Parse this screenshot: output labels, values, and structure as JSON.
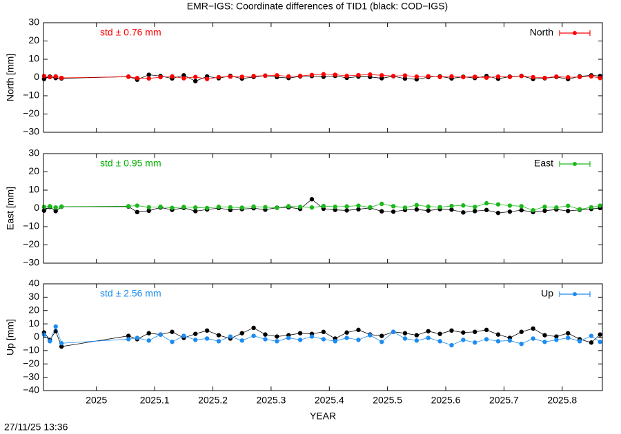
{
  "title": "EMR−IGS: Coordinate differences of TID1 (black: COD−IGS)",
  "timestamp": "27/11/25 13:36",
  "chart_data": [
    {
      "type": "line",
      "y_label": "North [mm]",
      "annotation": "std ± 0.76 mm",
      "annotation_color": "#ff0000",
      "legend": "top-right",
      "xlim": [
        2024.909,
        2025.869
      ],
      "ylim": [
        -30,
        30
      ],
      "yticks": [
        {
          "value": -30,
          "label": "−30"
        },
        {
          "value": -20,
          "label": "−20"
        },
        {
          "value": -10,
          "label": "−10"
        },
        0,
        10,
        20,
        30
      ],
      "x": [
        2024.91,
        2024.92,
        2024.93,
        2024.94,
        2025.055,
        2025.07,
        2025.09,
        2025.11,
        2025.13,
        2025.15,
        2025.17,
        2025.19,
        2025.21,
        2025.23,
        2025.25,
        2025.27,
        2025.29,
        2025.31,
        2025.33,
        2025.35,
        2025.37,
        2025.39,
        2025.41,
        2025.43,
        2025.45,
        2025.47,
        2025.49,
        2025.51,
        2025.53,
        2025.55,
        2025.57,
        2025.59,
        2025.61,
        2025.63,
        2025.65,
        2025.67,
        2025.69,
        2025.71,
        2025.73,
        2025.75,
        2025.77,
        2025.79,
        2025.81,
        2025.83,
        2025.85,
        2025.865
      ],
      "series": [
        {
          "color": "#000000",
          "values": [
            -0.8,
            0.5,
            -0.3,
            -0.5,
            0.5,
            -1.2,
            1.5,
            0.8,
            -0.5,
            1.2,
            -2.0,
            0.6,
            -0.4,
            0.9,
            -0.6,
            0.3,
            1.0,
            0.2,
            -0.3,
            0.6,
            0.8,
            0.4,
            0.9,
            -0.2,
            0.5,
            0.3,
            -0.4,
            0.7,
            -0.6,
            -1.0,
            0.2,
            0.6,
            -0.5,
            0.4,
            -0.3,
            0.8,
            -0.7,
            0.5,
            0.9,
            -0.8,
            -0.4,
            0.3,
            -0.9,
            0.6,
            1.2,
            0.8
          ]
        },
        {
          "name": "North",
          "color": "#ff0000",
          "values": [
            0.8,
            0.2,
            0.6,
            -0.2,
            0.4,
            -0.3,
            -0.5,
            0.2,
            0.6,
            -0.4,
            0.3,
            -0.8,
            0.2,
            0.5,
            0.4,
            0.8,
            1.0,
            1.2,
            0.6,
            0.9,
            1.4,
            1.8,
            1.5,
            0.9,
            1.3,
            1.6,
            1.2,
            0.8,
            1.1,
            0.5,
            0.7,
            0.3,
            0.6,
            0.2,
            0.4,
            -0.1,
            0.5,
            0.3,
            0.8,
            0.2,
            -0.2,
            0.5,
            0.1,
            0.3,
            0.6,
            -0.3
          ]
        }
      ]
    },
    {
      "type": "line",
      "y_label": "East [mm]",
      "annotation": "std ± 0.95 mm",
      "annotation_color": "#00b000",
      "legend": "top-right",
      "xlim": [
        2024.909,
        2025.869
      ],
      "ylim": [
        -30,
        30
      ],
      "yticks": [
        {
          "value": -30,
          "label": "−30"
        },
        {
          "value": -20,
          "label": "−20"
        },
        {
          "value": -10,
          "label": "−10"
        },
        0,
        10,
        20,
        30
      ],
      "x": [
        2024.91,
        2024.92,
        2024.93,
        2024.94,
        2025.055,
        2025.07,
        2025.09,
        2025.11,
        2025.13,
        2025.15,
        2025.17,
        2025.19,
        2025.21,
        2025.23,
        2025.25,
        2025.27,
        2025.29,
        2025.31,
        2025.33,
        2025.35,
        2025.37,
        2025.39,
        2025.41,
        2025.43,
        2025.45,
        2025.47,
        2025.49,
        2025.51,
        2025.53,
        2025.55,
        2025.57,
        2025.59,
        2025.61,
        2025.63,
        2025.65,
        2025.67,
        2025.69,
        2025.71,
        2025.73,
        2025.75,
        2025.77,
        2025.79,
        2025.81,
        2025.83,
        2025.85,
        2025.865
      ],
      "series": [
        {
          "color": "#000000",
          "values": [
            -1.2,
            0.8,
            -1.5,
            0.9,
            1.0,
            -2.0,
            -1.3,
            0.5,
            -0.8,
            0.3,
            -1.5,
            -0.6,
            0.2,
            -0.9,
            -0.4,
            0.1,
            -0.7,
            0.4,
            0.6,
            -0.3,
            5.0,
            -0.2,
            -0.8,
            -1.1,
            -0.5,
            0.3,
            -1.6,
            -1.8,
            -0.9,
            -0.6,
            -1.2,
            -0.4,
            -0.7,
            -2.2,
            -1.5,
            -0.9,
            -2.5,
            -1.8,
            -1.0,
            -2.0,
            -1.3,
            -0.6,
            -1.4,
            -0.8,
            -0.3,
            0.2
          ]
        },
        {
          "name": "East",
          "color": "#1cb81c",
          "values": [
            0.8,
            1.2,
            0.5,
            1.0,
            1.2,
            1.5,
            0.6,
            0.9,
            0.3,
            0.8,
            0.5,
            0.2,
            0.9,
            0.6,
            0.4,
            1.0,
            0.7,
            0.3,
            1.2,
            0.8,
            0.5,
            1.3,
            0.9,
            1.1,
            1.5,
            0.6,
            2.5,
            1.2,
            0.4,
            1.8,
            1.0,
            0.7,
            1.3,
            1.6,
            0.8,
            2.8,
            2.2,
            1.5,
            1.2,
            -1.0,
            0.9,
            0.5,
            1.4,
            -0.5,
            0.6,
            1.5
          ]
        }
      ]
    },
    {
      "type": "line",
      "y_label": "Up [mm]",
      "annotation": "std ± 2.56 mm",
      "annotation_color": "#1e8cf0",
      "legend": "top-right",
      "x_label": "YEAR",
      "xlim": [
        2024.909,
        2025.869
      ],
      "ylim": [
        -40,
        40
      ],
      "yticks": [
        {
          "value": -40,
          "label": "−40"
        },
        {
          "value": -30,
          "label": "−30"
        },
        {
          "value": -20,
          "label": "−20"
        },
        {
          "value": -10,
          "label": "−10"
        },
        0,
        10,
        20,
        30,
        40
      ],
      "xticks": [
        2025,
        2025.1,
        2025.2,
        2025.3,
        2025.4,
        2025.5,
        2025.6,
        2025.7,
        2025.8
      ],
      "x": [
        2024.91,
        2024.92,
        2024.93,
        2024.94,
        2025.055,
        2025.07,
        2025.09,
        2025.11,
        2025.13,
        2025.15,
        2025.17,
        2025.19,
        2025.21,
        2025.23,
        2025.25,
        2025.27,
        2025.29,
        2025.31,
        2025.33,
        2025.35,
        2025.37,
        2025.39,
        2025.41,
        2025.43,
        2025.45,
        2025.47,
        2025.49,
        2025.51,
        2025.53,
        2025.55,
        2025.57,
        2025.59,
        2025.61,
        2025.63,
        2025.65,
        2025.67,
        2025.69,
        2025.71,
        2025.73,
        2025.75,
        2025.77,
        2025.79,
        2025.81,
        2025.83,
        2025.85,
        2025.865
      ],
      "series": [
        {
          "color": "#000000",
          "values": [
            3.5,
            -2.0,
            4.5,
            -7.0,
            1.0,
            -1.5,
            3.0,
            2.0,
            4.0,
            -0.5,
            2.5,
            5.0,
            1.5,
            -1.0,
            3.0,
            7.0,
            2.0,
            0.5,
            1.5,
            3.0,
            2.5,
            4.0,
            -1.0,
            3.5,
            5.5,
            2.0,
            1.0,
            4.0,
            3.0,
            1.5,
            4.5,
            2.5,
            5.0,
            3.5,
            4.0,
            5.5,
            2.0,
            -0.5,
            4.0,
            6.5,
            1.5,
            0.5,
            3.0,
            -1.5,
            -4.0,
            2.0
          ]
        },
        {
          "name": "Up",
          "color": "#1e8cf0",
          "values": [
            2.0,
            -3.0,
            8.0,
            -4.5,
            -1.5,
            -0.5,
            -2.5,
            2.0,
            -3.5,
            1.0,
            -2.0,
            -1.0,
            -3.0,
            0.5,
            -2.5,
            1.0,
            -1.5,
            -3.0,
            -0.5,
            -2.0,
            0.5,
            -1.5,
            -3.0,
            -0.5,
            -2.0,
            1.5,
            -3.5,
            4.0,
            -1.0,
            -2.5,
            -0.5,
            -3.0,
            -6.0,
            -2.0,
            -4.0,
            -1.5,
            -3.0,
            -2.5,
            -5.0,
            -1.0,
            -3.5,
            -2.0,
            -0.5,
            -3.0,
            1.0,
            -3.5
          ]
        }
      ]
    }
  ]
}
